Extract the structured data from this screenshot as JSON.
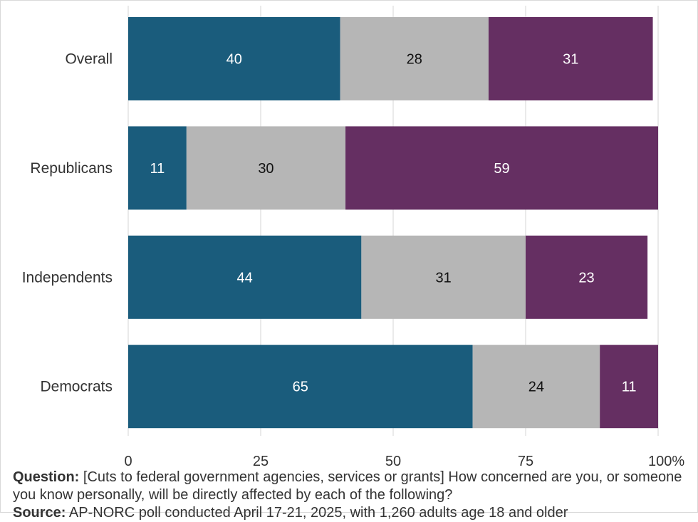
{
  "chart_data": {
    "type": "bar",
    "orientation": "horizontal",
    "stacked": true,
    "categories": [
      "Overall",
      "Republicans",
      "Independents",
      "Democrats"
    ],
    "series": [
      {
        "values": [
          40,
          11,
          44,
          65
        ],
        "color": "#1a5c7c",
        "label_color": "#ffffff"
      },
      {
        "values": [
          28,
          30,
          31,
          24
        ],
        "color": "#b6b6b6",
        "label_color": "#111111"
      },
      {
        "values": [
          31,
          59,
          23,
          11
        ],
        "color": "#652f62",
        "label_color": "#ffffff"
      }
    ],
    "xlim": [
      0,
      100
    ],
    "xticks": [
      "0",
      "25",
      "50",
      "75",
      "100%"
    ],
    "grid": "vertical",
    "legend": "none"
  },
  "footer": {
    "question_label": "Question:",
    "question_text": " [Cuts to federal government agencies, services or grants] How concerned are you, or someone you know personally, will be directly affected by each of the following?",
    "source_label": "Source:",
    "source_text": " AP-NORC poll conducted April 17-21, 2025, with 1,260 adults age 18 and older"
  }
}
